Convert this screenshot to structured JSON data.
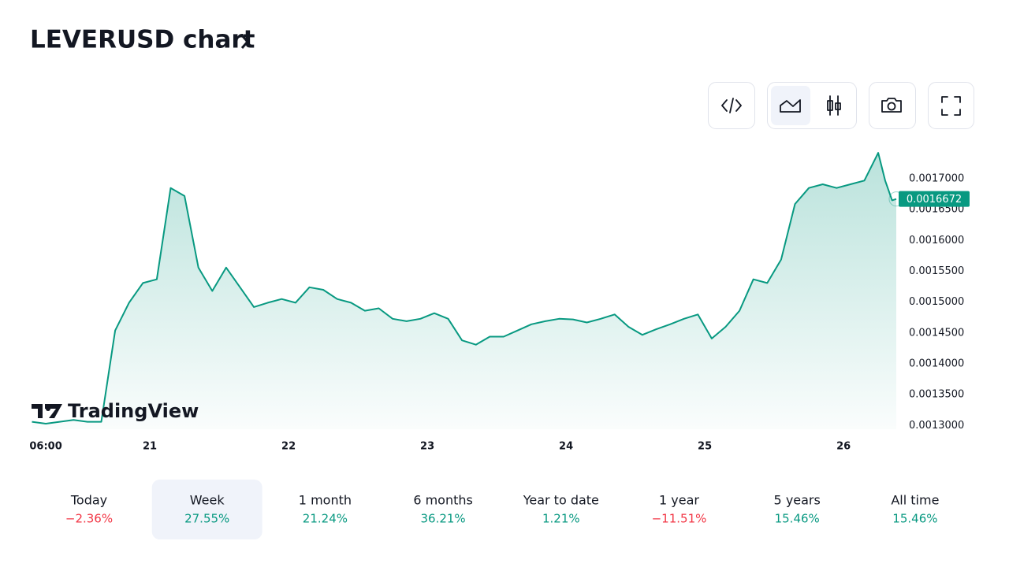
{
  "chart_data": {
    "type": "area",
    "title": "LEVERUSD chart",
    "watermark": "TradingView",
    "color": "#089981",
    "x": [
      20.15,
      20.25,
      20.35,
      20.45,
      20.55,
      20.65,
      20.75,
      20.85,
      20.95,
      21.05,
      21.15,
      21.25,
      21.35,
      21.45,
      21.55,
      21.65,
      21.75,
      21.85,
      21.95,
      22.05,
      22.15,
      22.25,
      22.35,
      22.45,
      22.55,
      22.65,
      22.75,
      22.85,
      22.95,
      23.05,
      23.15,
      23.25,
      23.35,
      23.45,
      23.55,
      23.65,
      23.75,
      23.85,
      23.95,
      24.05,
      24.15,
      24.25,
      24.35,
      24.45,
      24.55,
      24.65,
      24.75,
      24.85,
      24.95,
      25.05,
      25.15,
      25.25,
      25.35,
      25.45,
      25.55,
      25.65,
      25.75,
      25.85,
      25.95,
      26.05,
      26.15,
      26.25,
      26.3,
      26.35,
      26.38
    ],
    "values": [
      0.001306,
      0.001303,
      0.001306,
      0.001309,
      0.001306,
      0.001306,
      0.001454,
      0.001499,
      0.001531,
      0.001537,
      0.001685,
      0.001672,
      0.001556,
      0.001518,
      0.001556,
      0.001524,
      0.001492,
      0.001499,
      0.001505,
      0.001499,
      0.001524,
      0.00152,
      0.001505,
      0.001499,
      0.001486,
      0.00149,
      0.001473,
      0.001469,
      0.001473,
      0.001482,
      0.001473,
      0.001438,
      0.001431,
      0.001444,
      0.001444,
      0.001454,
      0.001464,
      0.001469,
      0.001473,
      0.001472,
      0.001467,
      0.001473,
      0.00148,
      0.00146,
      0.001447,
      0.001456,
      0.001464,
      0.001473,
      0.00148,
      0.001441,
      0.00146,
      0.001486,
      0.001537,
      0.001531,
      0.001569,
      0.001659,
      0.001685,
      0.001691,
      0.001685,
      0.001691,
      0.001697,
      0.001742,
      0.001697,
      0.001665,
      0.0016672
    ],
    "last_value": 0.0016672,
    "xlim": [
      20.136,
      26.38
    ],
    "xticks": [
      {
        "value": 20.25,
        "label": "06:00"
      },
      21,
      22,
      23,
      24,
      25,
      26
    ],
    "ylim": [
      0.001294,
      0.00176
    ],
    "yticks": [
      {
        "value": 0.0013,
        "label": "0.0013000"
      },
      {
        "value": 0.00135,
        "label": "0.0013500"
      },
      {
        "value": 0.0014,
        "label": "0.0014000"
      },
      {
        "value": 0.00145,
        "label": "0.0014500"
      },
      {
        "value": 0.0015,
        "label": "0.0015000"
      },
      {
        "value": 0.00155,
        "label": "0.0015500"
      },
      {
        "value": 0.0016,
        "label": "0.0016000"
      },
      {
        "value": 0.00165,
        "label": "0.0016500"
      },
      {
        "value": 0.0017,
        "label": "0.0017000"
      }
    ],
    "grid": false
  },
  "periods": {
    "labels": [
      "Today",
      "Week",
      "1 month",
      "6 months",
      "Year to date",
      "1 year",
      "5 years",
      "All time"
    ],
    "values": [
      -2.36,
      27.55,
      21.24,
      36.21,
      1.21,
      -11.51,
      15.46,
      15.46
    ],
    "value_labels": [
      "−2.36%",
      "27.55%",
      "21.24%",
      "36.21%",
      "1.21%",
      "−11.51%",
      "15.46%",
      "15.46%"
    ],
    "selected": 1,
    "up_color": "#089981",
    "down_color": "#f23645"
  }
}
